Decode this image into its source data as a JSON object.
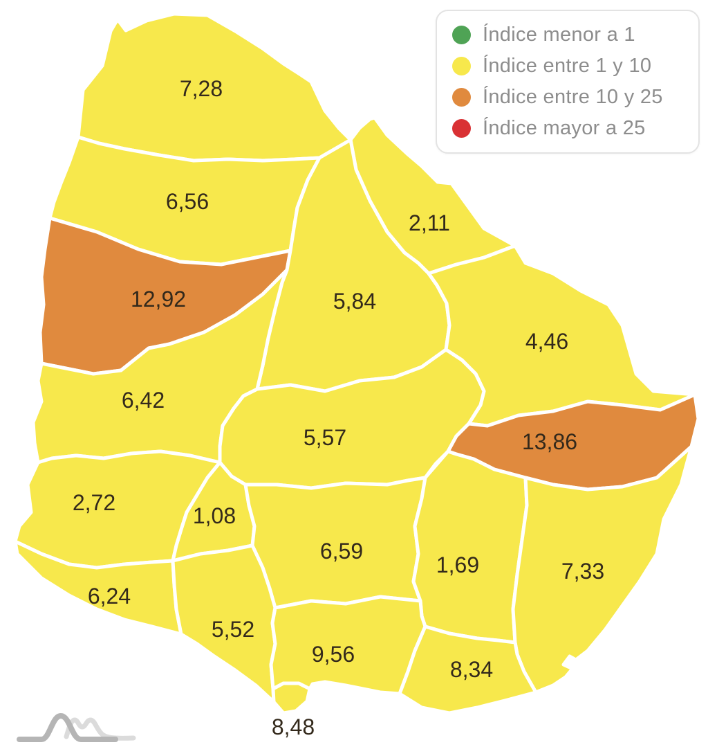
{
  "legend": {
    "items": [
      {
        "label": "Índice menor a 1",
        "color": "#4fa355"
      },
      {
        "label": "Índice entre 1 y 10",
        "color": "#f7e84c"
      },
      {
        "label": "Índice entre 10 y 25",
        "color": "#e08a3e"
      },
      {
        "label": "Índice mayor a 25",
        "color": "#d93134"
      }
    ]
  },
  "map": {
    "colors": {
      "yellow": "#f7e84c",
      "orange": "#e08a3e",
      "border": "#ffffff",
      "label": "#33291b"
    },
    "regions": [
      {
        "value": "7,28",
        "category": "yellow"
      },
      {
        "value": "6,56",
        "category": "yellow"
      },
      {
        "value": "2,11",
        "category": "yellow"
      },
      {
        "value": "12,92",
        "category": "orange"
      },
      {
        "value": "5,84",
        "category": "yellow"
      },
      {
        "value": "4,46",
        "category": "yellow"
      },
      {
        "value": "6,42",
        "category": "yellow"
      },
      {
        "value": "5,57",
        "category": "yellow"
      },
      {
        "value": "13,86",
        "category": "orange"
      },
      {
        "value": "2,72",
        "category": "yellow"
      },
      {
        "value": "1,08",
        "category": "yellow"
      },
      {
        "value": "6,59",
        "category": "yellow"
      },
      {
        "value": "1,69",
        "category": "yellow"
      },
      {
        "value": "7,33",
        "category": "yellow"
      },
      {
        "value": "6,24",
        "category": "yellow"
      },
      {
        "value": "5,52",
        "category": "yellow"
      },
      {
        "value": "9,56",
        "category": "yellow"
      },
      {
        "value": "8,34",
        "category": "yellow"
      },
      {
        "value": "8,48",
        "category": "yellow"
      }
    ]
  },
  "logo": {
    "main_color": "#b5b5b5",
    "light_color": "#dbdbdb"
  }
}
